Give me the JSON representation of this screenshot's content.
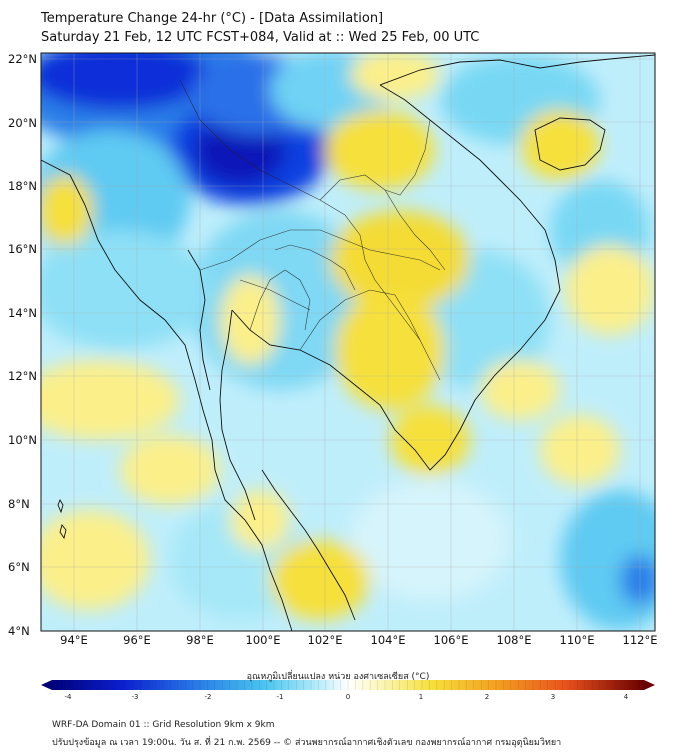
{
  "header": {
    "title_line1": "Temperature Change 24-hr (°C) - [Data Assimilation]",
    "title_line2": "Saturday 21 Feb, 12 UTC FCST+084, Valid at :: Wed 25 Feb, 00 UTC"
  },
  "axes": {
    "lat_labels": [
      "22°N",
      "20°N",
      "18°N",
      "16°N",
      "14°N",
      "12°N",
      "10°N",
      "8°N",
      "6°N",
      "4°N"
    ],
    "lon_labels": [
      "94°E",
      "96°E",
      "98°E",
      "100°E",
      "102°E",
      "104°E",
      "106°E",
      "108°E",
      "110°E",
      "112°E"
    ]
  },
  "colorbar": {
    "title": "อุณหภูมิเปลี่ยนแปลง หน่วย องศาเซลเซียส (°C)",
    "ticks": [
      "-4",
      "-3",
      "-2",
      "-1",
      "0",
      "1",
      "2",
      "3",
      "4"
    ],
    "colors": {
      "cold_extreme": "#00007a",
      "cold": "#1a4dd8",
      "cool": "#49c6f0",
      "neutral": "#ffffff",
      "warm": "#f6e03a",
      "hot": "#e8501c",
      "hot_extreme": "#6b0000"
    }
  },
  "footer": {
    "line1": "WRF-DA Domain 01 :: Grid Resolution 9km x 9km",
    "line2": "ปรับปรุงข้อมูล ณ เวลา 19:00น. วัน ส. ที่ 21 ก.พ. 2569 -- © ส่วนพยากรณ์อากาศเชิงตัวเลข กองพยากรณ์อากาศ กรมอุตุนิยมวิทยา"
  }
}
